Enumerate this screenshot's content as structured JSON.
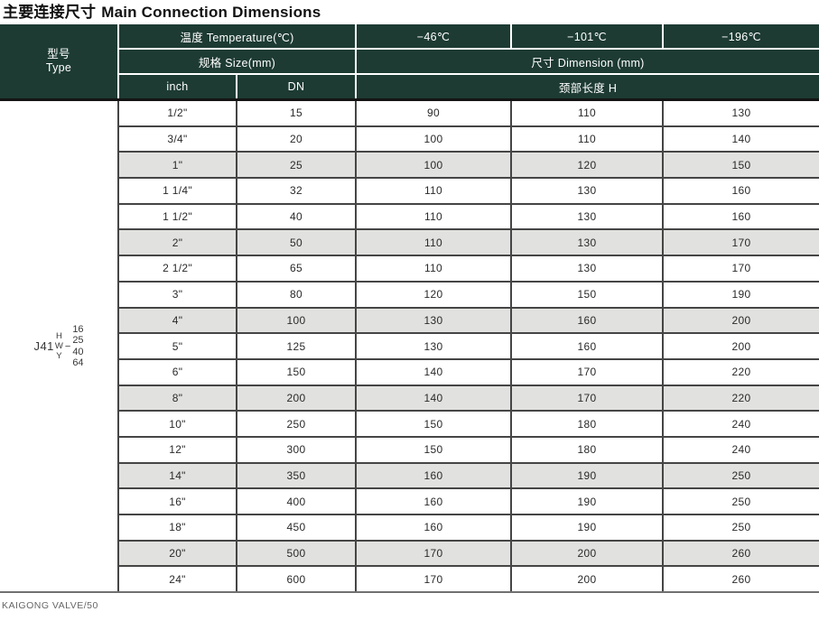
{
  "title": {
    "zh": "主要连接尺寸",
    "en": "Main Connection Dimensions"
  },
  "header": {
    "type": {
      "zh": "型号",
      "en": "Type"
    },
    "temperature_label": "温度 Temperature(℃)",
    "temp_cols": [
      "−46℃",
      "−101℃",
      "−196℃"
    ],
    "size_label": "规格 Size(mm)",
    "dimension_label": "尺寸 Dimension (mm)",
    "inch_label": "inch",
    "dn_label": "DN",
    "neck_label": "颈部长度 H"
  },
  "type_code": {
    "prefix": "J41",
    "letters": [
      "H",
      "W",
      "Y"
    ],
    "dash": "−",
    "numbers": [
      "16",
      "25",
      "40",
      "64"
    ]
  },
  "table": {
    "columns": [
      "inch",
      "DN",
      "H at −46℃",
      "H at −101℃",
      "H at −196℃"
    ],
    "rows": [
      {
        "inch": "1/2\"",
        "dn": "15",
        "h46": "90",
        "h101": "110",
        "h196": "130"
      },
      {
        "inch": "3/4\"",
        "dn": "20",
        "h46": "100",
        "h101": "110",
        "h196": "140"
      },
      {
        "inch": "1\"",
        "dn": "25",
        "h46": "100",
        "h101": "120",
        "h196": "150"
      },
      {
        "inch": "1 1/4\"",
        "dn": "32",
        "h46": "110",
        "h101": "130",
        "h196": "160"
      },
      {
        "inch": "1 1/2\"",
        "dn": "40",
        "h46": "110",
        "h101": "130",
        "h196": "160"
      },
      {
        "inch": "2\"",
        "dn": "50",
        "h46": "110",
        "h101": "130",
        "h196": "170"
      },
      {
        "inch": "2 1/2\"",
        "dn": "65",
        "h46": "110",
        "h101": "130",
        "h196": "170"
      },
      {
        "inch": "3\"",
        "dn": "80",
        "h46": "120",
        "h101": "150",
        "h196": "190"
      },
      {
        "inch": "4\"",
        "dn": "100",
        "h46": "130",
        "h101": "160",
        "h196": "200"
      },
      {
        "inch": "5\"",
        "dn": "125",
        "h46": "130",
        "h101": "160",
        "h196": "200"
      },
      {
        "inch": "6\"",
        "dn": "150",
        "h46": "140",
        "h101": "170",
        "h196": "220"
      },
      {
        "inch": "8\"",
        "dn": "200",
        "h46": "140",
        "h101": "170",
        "h196": "220"
      },
      {
        "inch": "10\"",
        "dn": "250",
        "h46": "150",
        "h101": "180",
        "h196": "240"
      },
      {
        "inch": "12\"",
        "dn": "300",
        "h46": "150",
        "h101": "180",
        "h196": "240"
      },
      {
        "inch": "14\"",
        "dn": "350",
        "h46": "160",
        "h101": "190",
        "h196": "250"
      },
      {
        "inch": "16\"",
        "dn": "400",
        "h46": "160",
        "h101": "190",
        "h196": "250"
      },
      {
        "inch": "18\"",
        "dn": "450",
        "h46": "160",
        "h101": "190",
        "h196": "250"
      },
      {
        "inch": "20\"",
        "dn": "500",
        "h46": "170",
        "h101": "200",
        "h196": "260"
      },
      {
        "inch": "24\"",
        "dn": "600",
        "h46": "170",
        "h101": "200",
        "h196": "260"
      }
    ]
  },
  "footer": {
    "text": "KAIGONG VALVE/50"
  },
  "colors": {
    "header_bg": "#1d3b33",
    "shaded_row": "#e1e1df",
    "grid_line": "#454545",
    "header_separator": "#ffffff"
  }
}
